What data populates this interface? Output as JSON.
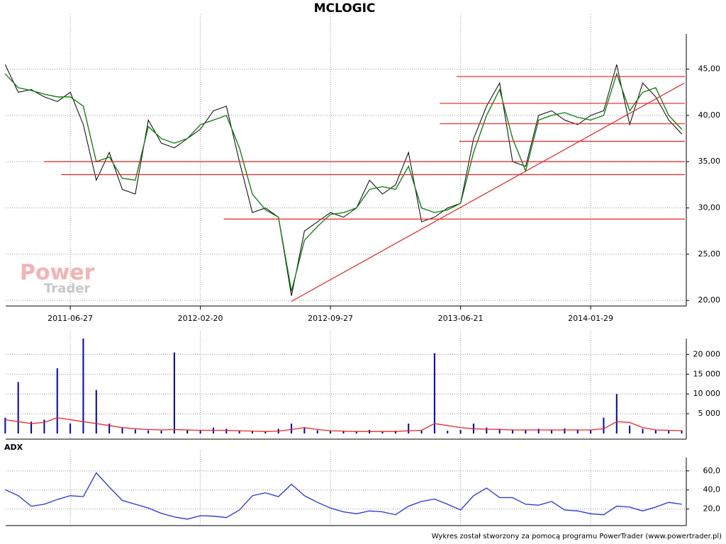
{
  "chart_data": [
    {
      "type": "line",
      "title": "MCLOGIC",
      "categories": [
        null,
        null,
        null,
        null,
        null,
        "2011-06-27",
        null,
        null,
        null,
        null,
        null,
        null,
        null,
        null,
        null,
        "2012-02-20",
        null,
        null,
        null,
        null,
        null,
        null,
        null,
        null,
        null,
        "2012-09-27",
        null,
        null,
        null,
        null,
        null,
        null,
        null,
        null,
        null,
        "2013-06-21",
        null,
        null,
        null,
        null,
        null,
        null,
        null,
        null,
        null,
        "2014-01-29",
        null,
        null,
        null,
        null,
        null,
        null,
        null
      ],
      "series": [
        {
          "color": "#000000",
          "values": [
            45.5,
            42.5,
            42.8,
            42,
            41.5,
            42.5,
            39,
            33,
            36,
            32,
            31.5,
            39.5,
            37,
            36.5,
            37.5,
            38.5,
            40.5,
            41,
            35,
            29.5,
            30,
            29,
            20.5,
            27.5,
            28.5,
            29.5,
            29,
            30,
            33,
            31.5,
            32.5,
            36,
            28.5,
            29,
            30,
            30.5,
            37.5,
            41,
            43.5,
            35,
            34.5,
            40,
            40.5,
            39.5,
            39,
            40,
            40.5,
            45.5,
            39,
            43.5,
            42,
            39.5,
            38
          ]
        },
        {
          "color": "#008000",
          "values": [
            44.5,
            43,
            42.7,
            42.3,
            42,
            42,
            41,
            35,
            35.5,
            33.2,
            33,
            38.8,
            37.5,
            37,
            37.5,
            39,
            39.5,
            40,
            36.5,
            31.5,
            29.8,
            29,
            21,
            26.5,
            28,
            29.3,
            29.5,
            30,
            32,
            32.3,
            32,
            34.5,
            30,
            29.5,
            29.8,
            30.5,
            36,
            40,
            42.8,
            37.5,
            34,
            39.5,
            40,
            40.3,
            39.8,
            39.5,
            40,
            44.5,
            40.5,
            42.5,
            43,
            40,
            38.5
          ]
        }
      ],
      "ylim": [
        19.4,
        48.8
      ],
      "yticks": [
        {
          "value": 20,
          "label": "20,00"
        },
        {
          "value": 25,
          "label": "25,00"
        },
        {
          "value": 30,
          "label": "30,00"
        },
        {
          "value": 35,
          "label": "35,00"
        },
        {
          "value": 40,
          "label": "40,00"
        },
        {
          "value": 45,
          "label": "45,00"
        }
      ],
      "grid": true,
      "hlines": [
        {
          "value": 44.2,
          "from": 34.7
        },
        {
          "value": 41.3,
          "from": 33.4
        },
        {
          "value": 39.1,
          "from": 33.4
        },
        {
          "value": 37.2,
          "from": 34.9
        },
        {
          "value": 35,
          "from": 3.0
        },
        {
          "value": 33.6,
          "from": 4.3
        },
        {
          "value": 28.8,
          "from": 16.8
        }
      ],
      "hline_color": "#ee2222",
      "trendline": {
        "from": [
          22.0,
          19.9
        ],
        "to": [
          52.2,
          43.5
        ],
        "color": "#ee2222"
      }
    },
    {
      "type": "bar",
      "series": [
        {
          "type": "bar",
          "color": "#0000cc",
          "values": [
            4000,
            13000,
            3000,
            3500,
            16500,
            2500,
            24000,
            11000,
            2500,
            1500,
            1000,
            800,
            700,
            20500,
            900,
            800,
            1500,
            1200,
            700,
            600,
            500,
            1200,
            2500,
            1500,
            800,
            700,
            600,
            500,
            900,
            600,
            700,
            2500,
            800,
            20300,
            700,
            900,
            2500,
            1500,
            1200,
            900,
            1000,
            1200,
            900,
            1300,
            1000,
            800,
            4000,
            10000,
            2000,
            1200,
            900,
            800,
            800
          ]
        },
        {
          "type": "line",
          "color": "#ee2222",
          "values": [
            3500,
            3000,
            2500,
            2800,
            4000,
            3500,
            3000,
            2500,
            2000,
            1500,
            1200,
            1000,
            900,
            1000,
            900,
            800,
            800,
            800,
            700,
            600,
            500,
            600,
            1000,
            1500,
            1000,
            700,
            600,
            500,
            500,
            500,
            500,
            700,
            800,
            2500,
            2000,
            1500,
            1200,
            1100,
            1000,
            900,
            900,
            900,
            900,
            900,
            900,
            900,
            1200,
            3000,
            2800,
            1500,
            900,
            800,
            700
          ]
        }
      ],
      "ylim": [
        0,
        24000
      ],
      "yticks": [
        {
          "value": 5000,
          "label": "5 000"
        },
        {
          "value": 10000,
          "label": "10 000"
        },
        {
          "value": 15000,
          "label": "15 000"
        },
        {
          "value": 20000,
          "label": "20 000"
        }
      ],
      "grid": true
    },
    {
      "type": "line",
      "title": "ADX",
      "series": [
        {
          "color": "#2233dd",
          "values": [
            40.4,
            34,
            23,
            25,
            30,
            34,
            33,
            58,
            43,
            29,
            25,
            21,
            15.5,
            11.7,
            9.4,
            13,
            12.5,
            11,
            19,
            34,
            37,
            33,
            46,
            34,
            27,
            21,
            17,
            15,
            18,
            17,
            14,
            23,
            28,
            30.5,
            25,
            19,
            34,
            42,
            32,
            32,
            25,
            24,
            28,
            19,
            18,
            15,
            14,
            23,
            22,
            18,
            22,
            27,
            25
          ]
        }
      ],
      "ylim": [
        0,
        74
      ],
      "yticks": [
        20,
        40,
        60
      ],
      "yticklabels": [
        "20,0",
        "40,0",
        "60,0"
      ],
      "grid": true
    }
  ],
  "watermark": {
    "top": "Power",
    "bottom": "Trader"
  },
  "footer": "Wykres został stworzony za pomocą programu PowerTrader (www.powertrader.pl)"
}
